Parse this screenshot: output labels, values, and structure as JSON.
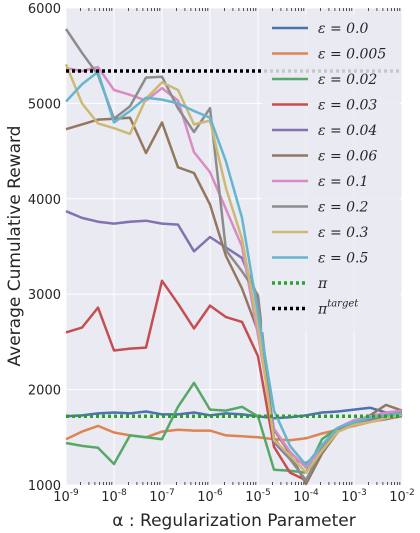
{
  "chart_data": {
    "type": "line",
    "title": "",
    "xlabel": "α : Regularization Parameter",
    "ylabel": "Average Cumulative Reward",
    "x_scale": "log",
    "xlim": [
      1e-09,
      0.01
    ],
    "ylim": [
      1000,
      6000
    ],
    "xticks": [
      1e-09,
      1e-08,
      1e-07,
      1e-06,
      1e-05,
      0.0001,
      0.001,
      0.01
    ],
    "xtick_labels": [
      {
        "base": "10",
        "exp": "-9"
      },
      {
        "base": "10",
        "exp": "-8"
      },
      {
        "base": "10",
        "exp": "-7"
      },
      {
        "base": "10",
        "exp": "-6"
      },
      {
        "base": "10",
        "exp": "-5"
      },
      {
        "base": "10",
        "exp": "-4"
      },
      {
        "base": "10",
        "exp": "-3"
      },
      {
        "base": "10",
        "exp": "-2"
      }
    ],
    "yticks": [
      1000,
      2000,
      3000,
      4000,
      5000,
      6000
    ],
    "ytick_labels": [
      "1000",
      "2000",
      "3000",
      "4000",
      "5000",
      "6000"
    ],
    "grid": true,
    "legend_position": "top-right",
    "x": [
      1e-09,
      2.15e-09,
      4.64e-09,
      1e-08,
      2.15e-08,
      4.64e-08,
      1e-07,
      2.15e-07,
      4.64e-07,
      1e-06,
      2.15e-06,
      4.64e-06,
      1e-05,
      2.15e-05,
      4.64e-05,
      0.0001,
      0.000215,
      0.000464,
      0.001,
      0.00215,
      0.00464,
      0.01
    ],
    "series": [
      {
        "name": "ε = 0.0",
        "color": "#4c72b0",
        "style": "solid",
        "values": [
          1720,
          1730,
          1750,
          1760,
          1750,
          1770,
          1740,
          1740,
          1760,
          1730,
          1750,
          1740,
          1720,
          1700,
          1710,
          1730,
          1760,
          1770,
          1790,
          1810,
          1760,
          1760
        ]
      },
      {
        "name": "ε = 0.005",
        "color": "#dd8452",
        "style": "solid",
        "values": [
          1480,
          1560,
          1620,
          1550,
          1520,
          1500,
          1560,
          1580,
          1570,
          1570,
          1520,
          1510,
          1500,
          1480,
          1470,
          1490,
          1540,
          1580,
          1620,
          1660,
          1690,
          1720
        ]
      },
      {
        "name": "ε = 0.02",
        "color": "#55a868",
        "style": "solid",
        "values": [
          1440,
          1410,
          1390,
          1220,
          1520,
          1500,
          1480,
          1820,
          2070,
          1790,
          1780,
          1820,
          1720,
          1160,
          1150,
          1130,
          1480,
          1600,
          1650,
          1700,
          1720,
          1720
        ]
      },
      {
        "name": "ε = 0.03",
        "color": "#c44e52",
        "style": "solid",
        "values": [
          2600,
          2650,
          2860,
          2410,
          2430,
          2440,
          3140,
          2900,
          2640,
          2880,
          2760,
          2710,
          2350,
          1400,
          1130,
          1050,
          1370,
          1580,
          1640,
          1690,
          1720,
          1740
        ]
      },
      {
        "name": "ε = 0.04",
        "color": "#8172b2",
        "style": "solid",
        "values": [
          3870,
          3800,
          3760,
          3740,
          3760,
          3770,
          3740,
          3730,
          3450,
          3600,
          3490,
          3380,
          2960,
          1450,
          1270,
          1230,
          1350,
          1560,
          1630,
          1680,
          1690,
          1740
        ]
      },
      {
        "name": "ε = 0.06",
        "color": "#937860",
        "style": "solid",
        "values": [
          4730,
          4780,
          4830,
          4840,
          4850,
          4480,
          4800,
          4330,
          4270,
          3940,
          3400,
          3060,
          2610,
          1580,
          1330,
          1010,
          1330,
          1560,
          1660,
          1730,
          1840,
          1780
        ]
      },
      {
        "name": "ε = 0.1",
        "color": "#da8bc3",
        "style": "solid",
        "values": [
          5370,
          5340,
          5380,
          5140,
          5090,
          5030,
          5160,
          5030,
          4490,
          4280,
          3890,
          3500,
          2570,
          1590,
          1350,
          1180,
          1400,
          1600,
          1680,
          1720,
          1760,
          1780
        ]
      },
      {
        "name": "ε = 0.2",
        "color": "#8c8c8c",
        "style": "solid",
        "values": [
          5780,
          5530,
          5300,
          4840,
          4970,
          5270,
          5280,
          4950,
          4700,
          4950,
          3460,
          3240,
          2990,
          1490,
          1270,
          1050,
          1380,
          1560,
          1640,
          1700,
          1730,
          1760
        ]
      },
      {
        "name": "ε = 0.3",
        "color": "#ccb974",
        "style": "solid",
        "values": [
          5410,
          5000,
          4790,
          4740,
          4680,
          5050,
          5220,
          5140,
          4780,
          4820,
          4110,
          3580,
          2660,
          1470,
          1310,
          1130,
          1360,
          1560,
          1630,
          1660,
          1700,
          1740
        ]
      },
      {
        "name": "ε = 0.5",
        "color": "#64b5cd",
        "style": "solid",
        "values": [
          5020,
          5200,
          5330,
          4800,
          4920,
          5060,
          5040,
          5000,
          4920,
          4850,
          4390,
          3800,
          2800,
          1780,
          1410,
          1210,
          1420,
          1600,
          1660,
          1710,
          1730,
          1750
        ]
      },
      {
        "name": "π",
        "color": "#2ca02c",
        "style": "dotted",
        "values": [
          1720,
          1720,
          1720,
          1720,
          1720,
          1720,
          1720,
          1720,
          1720,
          1720,
          1720,
          1720,
          1720,
          1720,
          1720,
          1720,
          1720,
          1720,
          1720,
          1720,
          1720,
          1720
        ]
      },
      {
        "name": "π^target",
        "color": "#000000",
        "style": "dotted",
        "values": [
          5340,
          5340,
          5340,
          5340,
          5340,
          5340,
          5340,
          5340,
          5340,
          5340,
          5340,
          5340,
          5340,
          5340,
          5340,
          5340,
          5340,
          5340,
          5340,
          5340,
          5340,
          5340
        ]
      }
    ],
    "legend_labels": [
      {
        "base": "ε = 0.0"
      },
      {
        "base": "ε = 0.005"
      },
      {
        "base": "ε = 0.02"
      },
      {
        "base": "ε = 0.03"
      },
      {
        "base": "ε = 0.04"
      },
      {
        "base": "ε = 0.06"
      },
      {
        "base": "ε = 0.1"
      },
      {
        "base": "ε = 0.2"
      },
      {
        "base": "ε = 0.3"
      },
      {
        "base": "ε = 0.5"
      },
      {
        "base": "π"
      },
      {
        "base": "π",
        "sup": "target"
      }
    ],
    "colors": {
      "plot_background": "#eaeaf2",
      "grid": "#ffffff"
    }
  }
}
